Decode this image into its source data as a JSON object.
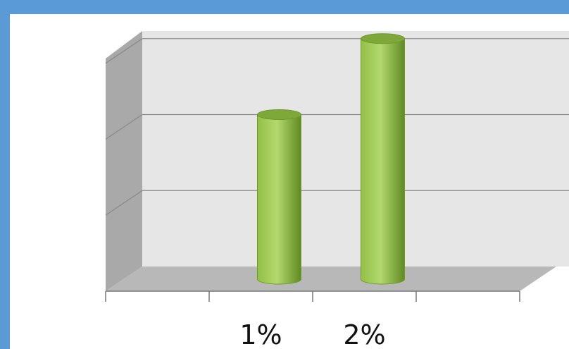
{
  "chart_data": {
    "type": "bar",
    "style": "3d-cylinder",
    "categories": [
      "",
      "1%",
      "2%",
      ""
    ],
    "values": [
      null,
      2,
      3,
      null
    ],
    "ylim": [
      0,
      3.1
    ],
    "ygrid_lines": [
      1,
      2,
      3
    ],
    "grid": true,
    "legend": "none",
    "title": "",
    "xlabel": "",
    "ylabel": "",
    "colors": {
      "bar_light": "#b3d86e",
      "bar_mid": "#93c047",
      "bar_dark": "#5f8a22",
      "bar_top": "#7ea83a",
      "frame": "#5b9bd5",
      "frame_dark": "#3f7fc4",
      "wall": "#e6e6e6",
      "floor": "#b8b8b8",
      "side_wall": "#a9a9a9",
      "grid": "#8a8a8a"
    }
  }
}
